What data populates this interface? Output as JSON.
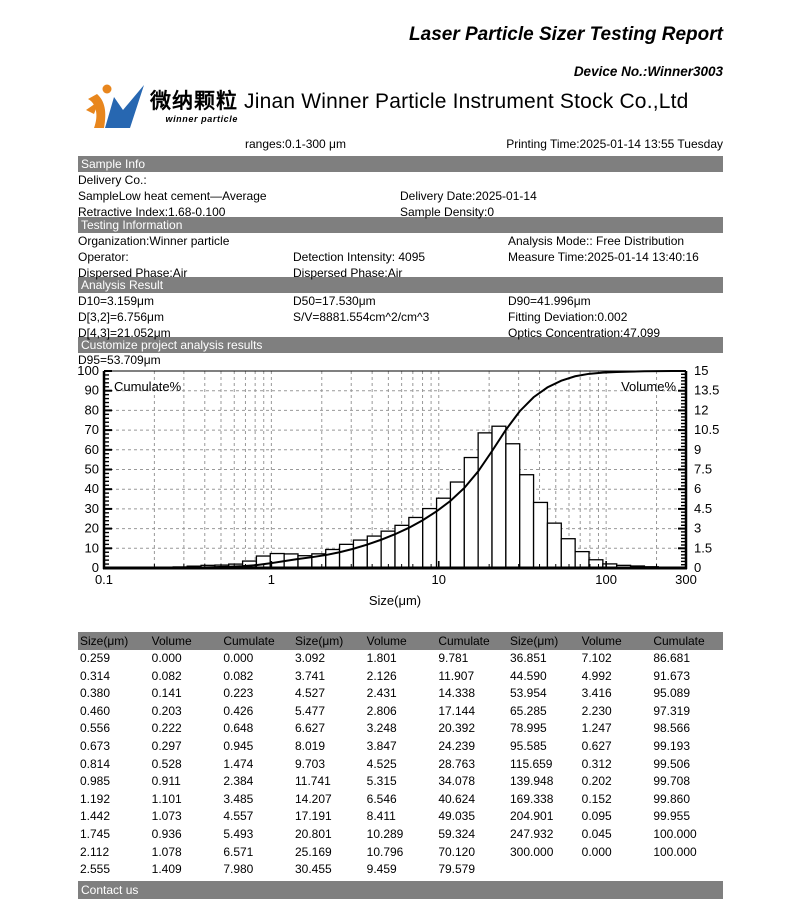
{
  "header": {
    "report_title": "Laser Particle Sizer Testing Report",
    "device_no": "Device No.:Winner3003",
    "company_name": "Jinan Winner Particle Instrument Stock Co.,Ltd",
    "logo": {
      "chinese": "微纳颗粒",
      "english": "winner particle"
    },
    "ranges_label": "ranges:0.1-300 μm",
    "printing_time": "Printing Time:2025-01-14 13:55 Tuesday"
  },
  "colors": {
    "section_bar": "#7f7f7f",
    "table_header_bar": "#7f7f7f",
    "logo_orange": "#E8861D",
    "logo_blue": "#2767B1",
    "grid_line": "#999999",
    "axis_black": "#000000"
  },
  "sample_info": {
    "title": "Sample Info",
    "rows": [
      [
        {
          "text": "Delivery Co.:",
          "x": 0
        }
      ],
      [
        {
          "text": "SampleLow heat cement—Average",
          "x": 0
        },
        {
          "text": "Delivery Date:2025-01-14",
          "x": 322
        }
      ],
      [
        {
          "text": "Retractive Index:1.68-0.100",
          "x": 0
        },
        {
          "text": "Sample Density:0",
          "x": 322
        }
      ]
    ]
  },
  "testing_information": {
    "title": "Testing Information",
    "rows": [
      [
        {
          "text": "Organization:Winner particle",
          "x": 0
        },
        {
          "text": "Analysis Mode::  Free Distribution",
          "x": 430
        }
      ],
      [
        {
          "text": "Operator:",
          "x": 0
        },
        {
          "text": "Detection Intensity:  4095",
          "x": 215
        },
        {
          "text": "Measure Time:2025-01-14 13:40:16",
          "x": 430
        }
      ],
      [
        {
          "text": "Dispersed Phase:Air",
          "x": 0
        },
        {
          "text": "Dispersed Phase:Air",
          "x": 215
        }
      ]
    ]
  },
  "analysis_result": {
    "title": "Analysis Result",
    "rows": [
      [
        {
          "text": "D10=3.159μm",
          "x": 0
        },
        {
          "text": "D50=17.530μm",
          "x": 215
        },
        {
          "text": "D90=41.996μm",
          "x": 430
        }
      ],
      [
        {
          "text": "D[3,2]=6.756μm",
          "x": 0
        },
        {
          "text": "S/V=8881.554cm^2/cm^3",
          "x": 215
        },
        {
          "text": "Fitting Deviation:0.002",
          "x": 430
        }
      ],
      [
        {
          "text": "D[4,3]=21.052μm",
          "x": 0
        },
        {
          "text": "Optics Concentration:47.099",
          "x": 430
        }
      ]
    ]
  },
  "customize_results": {
    "title": "Customize project analysis results",
    "d95": "D95=53.709μm"
  },
  "chart_data": {
    "type": "bar",
    "subtype": "log-histogram with cumulative line overlay",
    "x_axis": {
      "label": "Size(μm)",
      "scale": "log",
      "min": 0.1,
      "max": 300,
      "tick_values": [
        0.1,
        1,
        10,
        100,
        300
      ],
      "tick_labels": [
        "0.1",
        "1",
        "10",
        "100",
        "300"
      ]
    },
    "left_axis": {
      "label": "Cumulate%",
      "min": 0,
      "max": 100,
      "tick_labels": [
        "0",
        "10",
        "20",
        "30",
        "40",
        "50",
        "60",
        "70",
        "80",
        "90",
        "100"
      ]
    },
    "right_axis": {
      "label": "Volume%",
      "min": 0,
      "max": 15,
      "tick_labels": [
        "0",
        "1.5",
        "3",
        "4.5",
        "6",
        "7.5",
        "9",
        "10.5",
        "12",
        "13.5",
        "15"
      ]
    },
    "grid": "dashed",
    "series": [
      {
        "name": "Volume%",
        "type": "bar",
        "axis": "right",
        "x": [
          0.259,
          0.314,
          0.38,
          0.46,
          0.556,
          0.673,
          0.814,
          0.985,
          1.192,
          1.442,
          1.745,
          2.112,
          2.555,
          3.092,
          3.741,
          4.527,
          5.477,
          6.627,
          8.019,
          9.703,
          11.741,
          14.207,
          17.191,
          20.801,
          25.169,
          30.455,
          36.851,
          44.59,
          53.954,
          65.285,
          78.995,
          95.585,
          115.659,
          139.948,
          169.338,
          204.901,
          247.932,
          300.0
        ],
        "values": [
          0.0,
          0.082,
          0.141,
          0.203,
          0.222,
          0.297,
          0.528,
          0.911,
          1.101,
          1.073,
          0.936,
          1.078,
          1.409,
          1.801,
          2.126,
          2.431,
          2.806,
          3.248,
          3.847,
          4.525,
          5.315,
          6.546,
          8.411,
          10.289,
          10.796,
          9.459,
          7.102,
          4.992,
          3.416,
          2.23,
          1.247,
          0.627,
          0.312,
          0.202,
          0.152,
          0.095,
          0.045,
          0.0
        ]
      },
      {
        "name": "Cumulate%",
        "type": "line",
        "axis": "left",
        "x": [
          0.259,
          0.314,
          0.38,
          0.46,
          0.556,
          0.673,
          0.814,
          0.985,
          1.192,
          1.442,
          1.745,
          2.112,
          2.555,
          3.092,
          3.741,
          4.527,
          5.477,
          6.627,
          8.019,
          9.703,
          11.741,
          14.207,
          17.191,
          20.801,
          25.169,
          30.455,
          36.851,
          44.59,
          53.954,
          65.285,
          78.995,
          95.585,
          115.659,
          139.948,
          169.338,
          204.901,
          247.932,
          300.0
        ],
        "values": [
          0.0,
          0.082,
          0.223,
          0.426,
          0.648,
          0.945,
          1.474,
          2.384,
          3.485,
          4.557,
          5.493,
          6.571,
          7.98,
          9.781,
          11.907,
          14.338,
          17.144,
          20.392,
          24.239,
          28.763,
          34.078,
          40.624,
          49.035,
          59.324,
          70.12,
          79.579,
          86.681,
          91.673,
          95.089,
          97.319,
          98.566,
          99.193,
          99.506,
          99.708,
          99.86,
          99.955,
          100.0,
          100.0
        ]
      }
    ]
  },
  "table": {
    "headers": [
      "Size(μm)",
      "Volume",
      "Cumulate",
      "Size(μm)",
      "Volume",
      "Cumulate",
      "Size(μm)",
      "Volume",
      "Cumulate"
    ],
    "rows": [
      [
        "0.259",
        "0.000",
        "0.000",
        "3.092",
        "1.801",
        "9.781",
        "36.851",
        "7.102",
        "86.681"
      ],
      [
        "0.314",
        "0.082",
        "0.082",
        "3.741",
        "2.126",
        "11.907",
        "44.590",
        "4.992",
        "91.673"
      ],
      [
        "0.380",
        "0.141",
        "0.223",
        "4.527",
        "2.431",
        "14.338",
        "53.954",
        "3.416",
        "95.089"
      ],
      [
        "0.460",
        "0.203",
        "0.426",
        "5.477",
        "2.806",
        "17.144",
        "65.285",
        "2.230",
        "97.319"
      ],
      [
        "0.556",
        "0.222",
        "0.648",
        "6.627",
        "3.248",
        "20.392",
        "78.995",
        "1.247",
        "98.566"
      ],
      [
        "0.673",
        "0.297",
        "0.945",
        "8.019",
        "3.847",
        "24.239",
        "95.585",
        "0.627",
        "99.193"
      ],
      [
        "0.814",
        "0.528",
        "1.474",
        "9.703",
        "4.525",
        "28.763",
        "115.659",
        "0.312",
        "99.506"
      ],
      [
        "0.985",
        "0.911",
        "2.384",
        "11.741",
        "5.315",
        "34.078",
        "139.948",
        "0.202",
        "99.708"
      ],
      [
        "1.192",
        "1.101",
        "3.485",
        "14.207",
        "6.546",
        "40.624",
        "169.338",
        "0.152",
        "99.860"
      ],
      [
        "1.442",
        "1.073",
        "4.557",
        "17.191",
        "8.411",
        "49.035",
        "204.901",
        "0.095",
        "99.955"
      ],
      [
        "1.745",
        "0.936",
        "5.493",
        "20.801",
        "10.289",
        "59.324",
        "247.932",
        "0.045",
        "100.000"
      ],
      [
        "2.112",
        "1.078",
        "6.571",
        "25.169",
        "10.796",
        "70.120",
        "300.000",
        "0.000",
        "100.000"
      ],
      [
        "2.555",
        "1.409",
        "7.980",
        "30.455",
        "9.459",
        "79.579",
        "",
        "",
        ""
      ]
    ]
  },
  "contact": {
    "title": "Contact us"
  }
}
